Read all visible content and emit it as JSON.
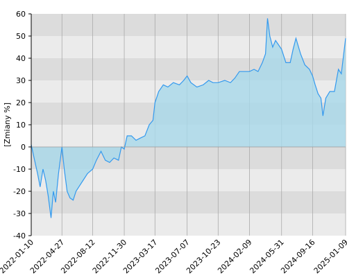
{
  "chart_data": {
    "type": "area",
    "y_label": "[Zmiany %]",
    "x": [
      "2022-01-10",
      "2022-01-20",
      "2022-02-01",
      "2022-02-10",
      "2022-02-20",
      "2022-03-01",
      "2022-03-10",
      "2022-03-20",
      "2022-03-28",
      "2022-04-05",
      "2022-04-15",
      "2022-04-27",
      "2022-05-05",
      "2022-05-15",
      "2022-05-25",
      "2022-06-05",
      "2022-06-15",
      "2022-06-25",
      "2022-07-10",
      "2022-07-25",
      "2022-08-12",
      "2022-08-25",
      "2022-09-10",
      "2022-09-25",
      "2022-10-10",
      "2022-10-25",
      "2022-11-10",
      "2022-11-20",
      "2022-11-30",
      "2022-12-10",
      "2022-12-25",
      "2023-01-10",
      "2023-01-25",
      "2023-02-10",
      "2023-02-25",
      "2023-03-10",
      "2023-03-17",
      "2023-03-30",
      "2023-04-15",
      "2023-05-01",
      "2023-05-20",
      "2023-06-10",
      "2023-06-25",
      "2023-07-07",
      "2023-07-20",
      "2023-08-10",
      "2023-09-01",
      "2023-09-20",
      "2023-10-05",
      "2023-10-23",
      "2023-11-15",
      "2023-12-05",
      "2023-12-20",
      "2024-01-05",
      "2024-01-20",
      "2024-02-09",
      "2024-02-25",
      "2024-03-10",
      "2024-03-25",
      "2024-04-05",
      "2024-04-12",
      "2024-04-20",
      "2024-04-30",
      "2024-05-10",
      "2024-05-31",
      "2024-06-15",
      "2024-06-30",
      "2024-07-10",
      "2024-07-20",
      "2024-08-05",
      "2024-08-20",
      "2024-09-05",
      "2024-09-16",
      "2024-09-25",
      "2024-10-05",
      "2024-10-15",
      "2024-10-22",
      "2024-11-01",
      "2024-11-15",
      "2024-12-01",
      "2024-12-15",
      "2024-12-25",
      "2025-01-09"
    ],
    "values": [
      1,
      -5,
      -12,
      -18,
      -10,
      -15,
      -22,
      -32,
      -20,
      -25,
      -12,
      0,
      -10,
      -20,
      -23,
      -24,
      -20,
      -18,
      -15,
      -12,
      -10,
      -6,
      -2,
      -6,
      -7,
      -5,
      -6,
      0,
      -1,
      5,
      5,
      3,
      4,
      5,
      10,
      12,
      20,
      25,
      28,
      27,
      29,
      28,
      30,
      32,
      29,
      27,
      28,
      30,
      29,
      29,
      30,
      29,
      31,
      34,
      34,
      34,
      35,
      34,
      38,
      42,
      58,
      50,
      45,
      48,
      44,
      38,
      38,
      44,
      49,
      42,
      37,
      35,
      32,
      28,
      24,
      22,
      14,
      22,
      25,
      25,
      35,
      33,
      49
    ],
    "color": "#3399ee",
    "fill": "#a8d8ea",
    "xlim": [
      "2022-01-10",
      "2025-01-09"
    ],
    "xticks": [
      "2022-01-10",
      "2022-04-27",
      "2022-08-12",
      "2022-11-30",
      "2023-03-17",
      "2023-07-07",
      "2023-10-23",
      "2024-02-09",
      "2024-05-31",
      "2024-09-16",
      "2025-01-09"
    ],
    "ylim": [
      -40,
      60
    ],
    "yticks": [
      -40,
      -30,
      -20,
      -10,
      0,
      10,
      20,
      30,
      40,
      50,
      60
    ],
    "grid": true
  }
}
